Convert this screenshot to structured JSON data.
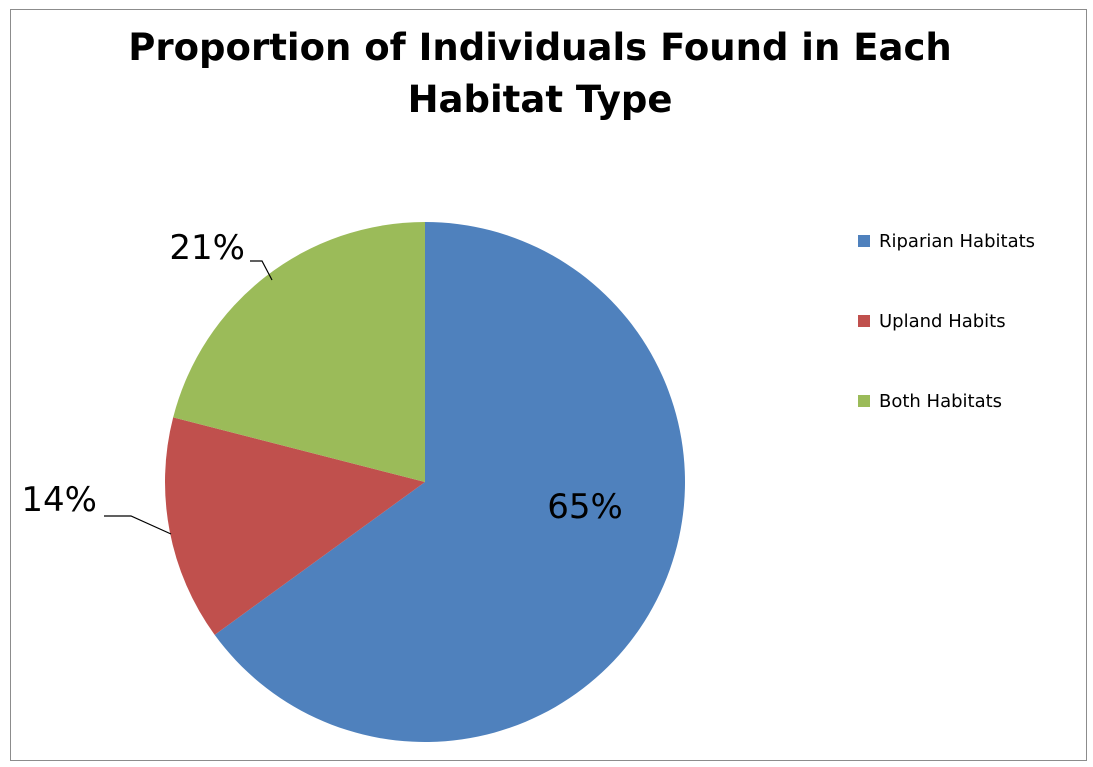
{
  "chart_data": {
    "type": "pie",
    "title": "Proportion of Individuals Found in Each Habitat Type",
    "categories": [
      "Riparian Habitats",
      "Upland Habits",
      "Both Habitats"
    ],
    "values": [
      65,
      14,
      21
    ],
    "labels": [
      "65%",
      "14%",
      "21%"
    ],
    "colors": [
      "#4f81bd",
      "#c0504d",
      "#9bbb59"
    ],
    "legend_position": "right"
  }
}
